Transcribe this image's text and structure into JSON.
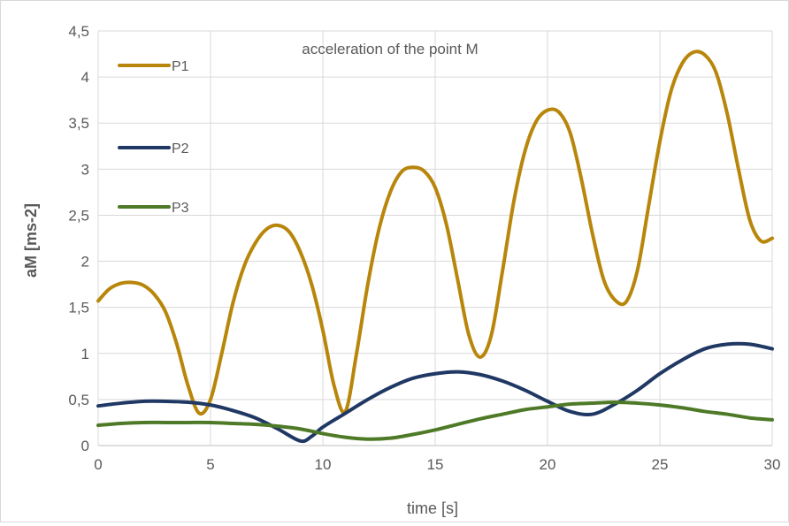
{
  "chart_data": {
    "type": "line",
    "title": "acceleration of the point M",
    "xlabel": "time [s]",
    "ylabel": "aM  [ms-2]",
    "xlim": [
      0,
      30
    ],
    "ylim": [
      0,
      4.5
    ],
    "x_ticks": [
      0,
      5,
      10,
      15,
      20,
      25,
      30
    ],
    "y_ticks": [
      0,
      0.5,
      1,
      1.5,
      2,
      2.5,
      3,
      3.5,
      4,
      4.5
    ],
    "x_tick_labels": [
      "0",
      "5",
      "10",
      "15",
      "20",
      "25",
      "30"
    ],
    "y_tick_labels": [
      "0",
      "0,5",
      "1",
      "1,5",
      "2",
      "2,5",
      "3",
      "3,5",
      "4",
      "4,5"
    ],
    "grid": true,
    "legend_position": "top-left",
    "series": [
      {
        "name": "P1",
        "color": "#b8860b",
        "points": [
          [
            0,
            1.57
          ],
          [
            0.5,
            1.7
          ],
          [
            1,
            1.76
          ],
          [
            1.5,
            1.77
          ],
          [
            2,
            1.74
          ],
          [
            2.5,
            1.64
          ],
          [
            3,
            1.45
          ],
          [
            3.5,
            1.1
          ],
          [
            4,
            0.65
          ],
          [
            4.5,
            0.35
          ],
          [
            5,
            0.5
          ],
          [
            5.5,
            1.0
          ],
          [
            6,
            1.55
          ],
          [
            6.5,
            1.95
          ],
          [
            7,
            2.2
          ],
          [
            7.5,
            2.35
          ],
          [
            8,
            2.39
          ],
          [
            8.5,
            2.32
          ],
          [
            9,
            2.1
          ],
          [
            9.5,
            1.75
          ],
          [
            10,
            1.25
          ],
          [
            10.5,
            0.65
          ],
          [
            11,
            0.37
          ],
          [
            11.5,
            1.0
          ],
          [
            12,
            1.75
          ],
          [
            12.5,
            2.35
          ],
          [
            13,
            2.75
          ],
          [
            13.5,
            2.97
          ],
          [
            14,
            3.02
          ],
          [
            14.5,
            2.98
          ],
          [
            15,
            2.8
          ],
          [
            15.5,
            2.4
          ],
          [
            16,
            1.8
          ],
          [
            16.5,
            1.2
          ],
          [
            17,
            0.96
          ],
          [
            17.5,
            1.2
          ],
          [
            18,
            1.9
          ],
          [
            18.5,
            2.65
          ],
          [
            19,
            3.2
          ],
          [
            19.5,
            3.52
          ],
          [
            20,
            3.64
          ],
          [
            20.5,
            3.62
          ],
          [
            21,
            3.4
          ],
          [
            21.5,
            2.9
          ],
          [
            22,
            2.3
          ],
          [
            22.5,
            1.8
          ],
          [
            23,
            1.58
          ],
          [
            23.5,
            1.56
          ],
          [
            24,
            1.9
          ],
          [
            24.5,
            2.6
          ],
          [
            25,
            3.3
          ],
          [
            25.5,
            3.85
          ],
          [
            26,
            4.15
          ],
          [
            26.5,
            4.27
          ],
          [
            27,
            4.24
          ],
          [
            27.5,
            4.05
          ],
          [
            28,
            3.6
          ],
          [
            28.5,
            3.0
          ],
          [
            29,
            2.45
          ],
          [
            29.5,
            2.22
          ],
          [
            30,
            2.25
          ]
        ]
      },
      {
        "name": "P2",
        "color": "#203864",
        "points": [
          [
            0,
            0.43
          ],
          [
            1,
            0.46
          ],
          [
            2,
            0.48
          ],
          [
            3,
            0.48
          ],
          [
            4,
            0.47
          ],
          [
            5,
            0.44
          ],
          [
            6,
            0.38
          ],
          [
            7,
            0.3
          ],
          [
            8,
            0.18
          ],
          [
            9,
            0.05
          ],
          [
            9.5,
            0.1
          ],
          [
            10,
            0.2
          ],
          [
            11,
            0.35
          ],
          [
            12,
            0.5
          ],
          [
            13,
            0.63
          ],
          [
            14,
            0.73
          ],
          [
            15,
            0.78
          ],
          [
            16,
            0.8
          ],
          [
            17,
            0.77
          ],
          [
            18,
            0.7
          ],
          [
            19,
            0.6
          ],
          [
            20,
            0.48
          ],
          [
            21,
            0.37
          ],
          [
            22,
            0.34
          ],
          [
            23,
            0.45
          ],
          [
            24,
            0.6
          ],
          [
            25,
            0.78
          ],
          [
            26,
            0.93
          ],
          [
            27,
            1.05
          ],
          [
            28,
            1.1
          ],
          [
            29,
            1.1
          ],
          [
            30,
            1.05
          ]
        ]
      },
      {
        "name": "P3",
        "color": "#4e7a27",
        "points": [
          [
            0,
            0.22
          ],
          [
            1,
            0.24
          ],
          [
            2,
            0.25
          ],
          [
            3,
            0.25
          ],
          [
            4,
            0.25
          ],
          [
            5,
            0.25
          ],
          [
            6,
            0.24
          ],
          [
            7,
            0.23
          ],
          [
            8,
            0.21
          ],
          [
            9,
            0.18
          ],
          [
            10,
            0.13
          ],
          [
            11,
            0.09
          ],
          [
            12,
            0.07
          ],
          [
            13,
            0.08
          ],
          [
            14,
            0.12
          ],
          [
            15,
            0.17
          ],
          [
            16,
            0.23
          ],
          [
            17,
            0.29
          ],
          [
            18,
            0.34
          ],
          [
            19,
            0.39
          ],
          [
            20,
            0.42
          ],
          [
            21,
            0.45
          ],
          [
            22,
            0.46
          ],
          [
            23,
            0.47
          ],
          [
            24,
            0.46
          ],
          [
            25,
            0.44
          ],
          [
            26,
            0.41
          ],
          [
            27,
            0.37
          ],
          [
            28,
            0.34
          ],
          [
            29,
            0.3
          ],
          [
            30,
            0.28
          ]
        ]
      }
    ]
  }
}
